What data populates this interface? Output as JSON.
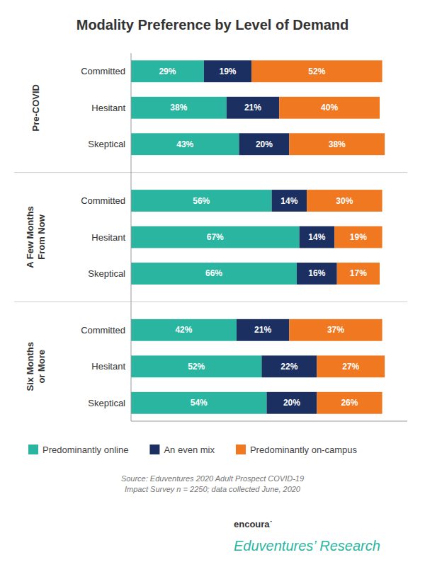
{
  "chart_data": {
    "type": "bar",
    "orientation": "horizontal",
    "stacked": true,
    "data_labels": true,
    "tick_labels": false,
    "legend": "bottom",
    "title": "Modality Preference by Level of Demand",
    "groups": [
      "Pre-COVID",
      "A Few Months\nFrom Now",
      "Six Months\nor More"
    ],
    "categories": [
      "Committed",
      "Hesitant",
      "Skeptical",
      "Committed",
      "Hesitant",
      "Skeptical",
      "Committed",
      "Hesitant",
      "Skeptical"
    ],
    "xlim": [
      0,
      110
    ],
    "series": [
      {
        "name": "Predominantly online",
        "color": "#2ab5a0",
        "values": [
          29,
          38,
          43,
          56,
          67,
          66,
          42,
          52,
          54
        ],
        "value_labels": [
          "29%",
          "38%",
          "43%",
          "56%",
          "67%",
          "66%",
          "42%",
          "52%",
          "54%"
        ]
      },
      {
        "name": "An even mix",
        "color": "#1b3060",
        "values": [
          19,
          21,
          20,
          14,
          14,
          16,
          21,
          22,
          20
        ],
        "value_labels": [
          "19%",
          "21%",
          "20%",
          "14%",
          "14%",
          "16%",
          "21%",
          "22%",
          "20%"
        ]
      },
      {
        "name": "Predominantly on-campus",
        "color": "#f07820",
        "values": [
          52,
          40,
          38,
          30,
          19,
          17,
          37,
          27,
          26
        ],
        "value_labels": [
          "52%",
          "40%",
          "38%",
          "30%",
          "19%",
          "17%",
          "37%",
          "27%",
          "26%"
        ]
      }
    ],
    "annotations": [
      "Source: Eduventures 2020 Adult Prospect COVID-19\nImpact Survey n = 2250; data collected June, 2020",
      "encoura˙",
      "Eduventures’ Research"
    ]
  }
}
